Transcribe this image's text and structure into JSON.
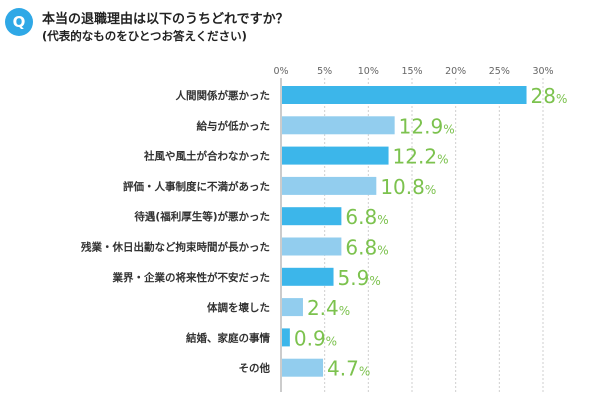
{
  "question": {
    "badge": "Q",
    "title": "本当の退職理由は以下のうちどれですか？",
    "subtitle": "(代表的なものをひとつお答えください)"
  },
  "colors": {
    "bar_dark": "#3cb6ea",
    "bar_light": "#92cdee",
    "value_text": "#7cc24e",
    "grid": "#cfcfcf",
    "badge": "#2fa8e6"
  },
  "chart_data": {
    "type": "bar",
    "orientation": "horizontal",
    "categories": [
      "人間関係が悪かった",
      "給与が低かった",
      "社風や風土が合わなかった",
      "評価・人事制度に不満があった",
      "待遇(福利厚生等)が悪かった",
      "残業・休日出勤など拘束時間が長かった",
      "業界・企業の将来性が不安だった",
      "体調を壊した",
      "結婚、家庭の事情",
      "その他"
    ],
    "values": [
      28,
      12.9,
      12.2,
      10.8,
      6.8,
      6.8,
      5.9,
      2.4,
      0.9,
      4.7
    ],
    "value_labels": [
      "28",
      "12.9",
      "12.2",
      "10.8",
      "6.8",
      "6.8",
      "5.9",
      "2.4",
      "0.9",
      "4.7"
    ],
    "value_unit": "%",
    "xlim": [
      0,
      30
    ],
    "ticks": [
      "0%",
      "5%",
      "10%",
      "15%",
      "20%",
      "25%",
      "30%"
    ],
    "tick_values": [
      0,
      5,
      10,
      15,
      20,
      25,
      30
    ],
    "grid": true
  }
}
